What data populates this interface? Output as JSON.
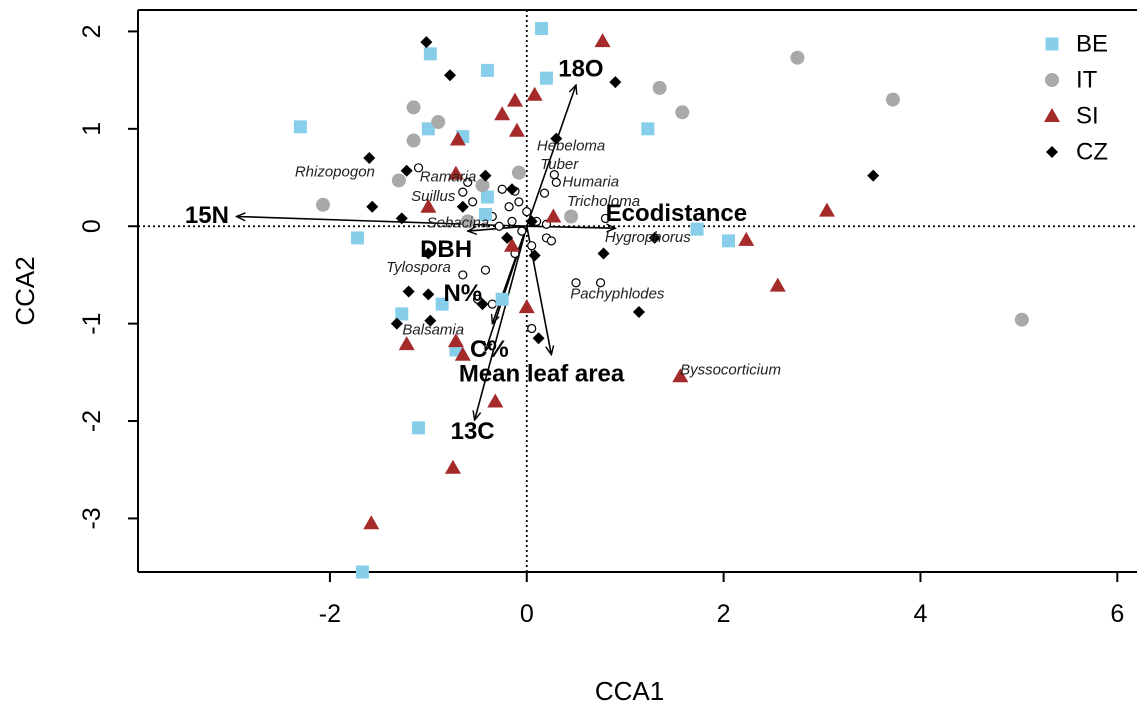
{
  "chart_data": {
    "type": "scatter",
    "xlabel": "CCA1",
    "ylabel": "CCA2",
    "xlim": [
      -3.95,
      6.2
    ],
    "ylim": [
      -3.55,
      2.22
    ],
    "x_ticks": [
      -2,
      0,
      2,
      4,
      6
    ],
    "y_ticks": [
      -3,
      -2,
      -1,
      0,
      1,
      2
    ],
    "reference_lines": {
      "x": 0,
      "y": 0,
      "style": "dotted"
    },
    "legend": {
      "position": "top-right"
    },
    "series": [
      {
        "name": "BE",
        "marker": "square",
        "color": "#87CEEB",
        "points": [
          [
            0.15,
            2.03
          ],
          [
            -0.98,
            1.77
          ],
          [
            -0.4,
            1.6
          ],
          [
            0.2,
            1.52
          ],
          [
            -2.3,
            1.02
          ],
          [
            -1.0,
            1.0
          ],
          [
            -0.65,
            0.92
          ],
          [
            1.23,
            1.0
          ],
          [
            -0.4,
            0.3
          ],
          [
            -0.42,
            0.12
          ],
          [
            -1.72,
            -0.12
          ],
          [
            1.73,
            -0.03
          ],
          [
            2.05,
            -0.15
          ],
          [
            -1.27,
            -0.9
          ],
          [
            -0.86,
            -0.8
          ],
          [
            -0.25,
            -0.75
          ],
          [
            -0.72,
            -1.27
          ],
          [
            -1.1,
            -2.07
          ],
          [
            -1.67,
            -3.55
          ]
        ]
      },
      {
        "name": "IT",
        "marker": "circle",
        "color": "#A9A9A9",
        "points": [
          [
            2.75,
            1.73
          ],
          [
            1.35,
            1.42
          ],
          [
            3.72,
            1.3
          ],
          [
            -1.15,
            1.22
          ],
          [
            1.58,
            1.17
          ],
          [
            -0.9,
            1.07
          ],
          [
            -1.15,
            0.88
          ],
          [
            -0.08,
            0.55
          ],
          [
            -1.3,
            0.47
          ],
          [
            -0.45,
            0.42
          ],
          [
            -2.07,
            0.22
          ],
          [
            0.45,
            0.1
          ],
          [
            -0.6,
            0.05
          ],
          [
            5.03,
            -0.96
          ]
        ]
      },
      {
        "name": "SI",
        "marker": "triangle",
        "color": "#A52A2A",
        "points": [
          [
            0.77,
            1.9
          ],
          [
            0.08,
            1.35
          ],
          [
            -0.12,
            1.29
          ],
          [
            -0.25,
            1.15
          ],
          [
            -0.1,
            0.98
          ],
          [
            -0.7,
            0.89
          ],
          [
            -0.72,
            0.54
          ],
          [
            -1.0,
            0.2
          ],
          [
            3.05,
            0.16
          ],
          [
            0.27,
            0.1
          ],
          [
            2.23,
            -0.14
          ],
          [
            -0.15,
            -0.2
          ],
          [
            2.55,
            -0.61
          ],
          [
            0.0,
            -0.83
          ],
          [
            -1.22,
            -1.21
          ],
          [
            -0.72,
            -1.18
          ],
          [
            -0.65,
            -1.32
          ],
          [
            1.56,
            -1.54
          ],
          [
            -0.32,
            -1.8
          ],
          [
            -0.75,
            -2.48
          ],
          [
            -1.58,
            -3.05
          ]
        ]
      },
      {
        "name": "CZ",
        "marker": "diamond",
        "color": "#000000",
        "points": [
          [
            -1.02,
            1.89
          ],
          [
            -0.78,
            1.55
          ],
          [
            0.9,
            1.48
          ],
          [
            0.3,
            0.9
          ],
          [
            -1.6,
            0.7
          ],
          [
            -1.22,
            0.57
          ],
          [
            -0.42,
            0.52
          ],
          [
            3.52,
            0.52
          ],
          [
            -1.57,
            0.2
          ],
          [
            -0.65,
            0.2
          ],
          [
            -1.27,
            0.08
          ],
          [
            -0.15,
            0.38
          ],
          [
            0.05,
            0.05
          ],
          [
            1.3,
            -0.12
          ],
          [
            -1.0,
            -0.28
          ],
          [
            0.08,
            -0.3
          ],
          [
            0.78,
            -0.28
          ],
          [
            -0.2,
            -0.12
          ],
          [
            -1.2,
            -0.67
          ],
          [
            -1.0,
            -0.7
          ],
          [
            -0.45,
            -0.8
          ],
          [
            -1.32,
            -1.0
          ],
          [
            -0.98,
            -0.97
          ],
          [
            1.14,
            -0.88
          ],
          [
            0.12,
            -1.15
          ]
        ]
      }
    ],
    "species_points": [
      [
        -1.1,
        0.6
      ],
      [
        -0.65,
        0.35
      ],
      [
        -0.55,
        0.25
      ],
      [
        -0.25,
        0.38
      ],
      [
        -0.12,
        0.36
      ],
      [
        -0.08,
        0.25
      ],
      [
        -0.18,
        0.2
      ],
      [
        -0.35,
        0.1
      ],
      [
        -0.15,
        0.05
      ],
      [
        -0.05,
        -0.05
      ],
      [
        0.1,
        0.05
      ],
      [
        0.2,
        0.02
      ],
      [
        0.3,
        0.45
      ],
      [
        0.28,
        0.53
      ],
      [
        0.18,
        0.34
      ],
      [
        0.8,
        0.08
      ],
      [
        0.2,
        -0.12
      ],
      [
        0.05,
        -0.2
      ],
      [
        -0.12,
        -0.28
      ],
      [
        0.5,
        -0.58
      ],
      [
        0.75,
        -0.58
      ],
      [
        -0.65,
        -0.5
      ],
      [
        -0.42,
        -0.45
      ],
      [
        -0.5,
        -0.75
      ],
      [
        -0.35,
        -0.8
      ],
      [
        0.05,
        -1.05
      ],
      [
        0.25,
        -0.15
      ],
      [
        0.0,
        0.15
      ],
      [
        -0.28,
        0.0
      ],
      [
        -0.6,
        0.45
      ]
    ],
    "species_labels": [
      {
        "text": "Rhizopogon",
        "x": -1.95,
        "y": 0.55
      },
      {
        "text": "Hebeloma",
        "x": 0.45,
        "y": 0.82
      },
      {
        "text": "Tuber",
        "x": 0.33,
        "y": 0.63
      },
      {
        "text": "Ramaria",
        "x": -0.8,
        "y": 0.5
      },
      {
        "text": "Humaria",
        "x": 0.65,
        "y": 0.45
      },
      {
        "text": "Suillus",
        "x": -0.95,
        "y": 0.3
      },
      {
        "text": "Tricholoma",
        "x": 0.78,
        "y": 0.25
      },
      {
        "text": "Sebacina",
        "x": -0.7,
        "y": 0.03
      },
      {
        "text": "Hygrophorus",
        "x": 1.23,
        "y": -0.12
      },
      {
        "text": "Tylospora",
        "x": -1.1,
        "y": -0.43
      },
      {
        "text": "Pachyphlodes",
        "x": 0.92,
        "y": -0.7
      },
      {
        "text": "Balsamia",
        "x": -0.95,
        "y": -1.07
      },
      {
        "text": "Byssocorticium",
        "x": 2.07,
        "y": -1.48
      }
    ],
    "environmental_vectors": [
      {
        "name": "18O",
        "x": 0.5,
        "y": 1.45,
        "label_x": 0.55,
        "label_y": 1.6
      },
      {
        "name": "15N",
        "x": -2.95,
        "y": 0.1,
        "label_x": -3.25,
        "label_y": 0.1
      },
      {
        "name": "Ecodistance",
        "x": 0.9,
        "y": -0.02,
        "label_x": 1.52,
        "label_y": 0.12
      },
      {
        "name": "DBH",
        "x": -0.6,
        "y": -0.05,
        "label_x": -0.82,
        "label_y": -0.25
      },
      {
        "name": "N%",
        "x": -0.35,
        "y": -1.0,
        "label_x": -0.65,
        "label_y": -0.7
      },
      {
        "name": "C%",
        "x": -0.42,
        "y": -1.28,
        "label_x": -0.38,
        "label_y": -1.28
      },
      {
        "name": "Mean leaf area",
        "x": 0.25,
        "y": -1.32,
        "label_x": 0.15,
        "label_y": -1.53
      },
      {
        "name": "13C",
        "x": -0.53,
        "y": -1.99,
        "label_x": -0.55,
        "label_y": -2.12
      }
    ]
  }
}
